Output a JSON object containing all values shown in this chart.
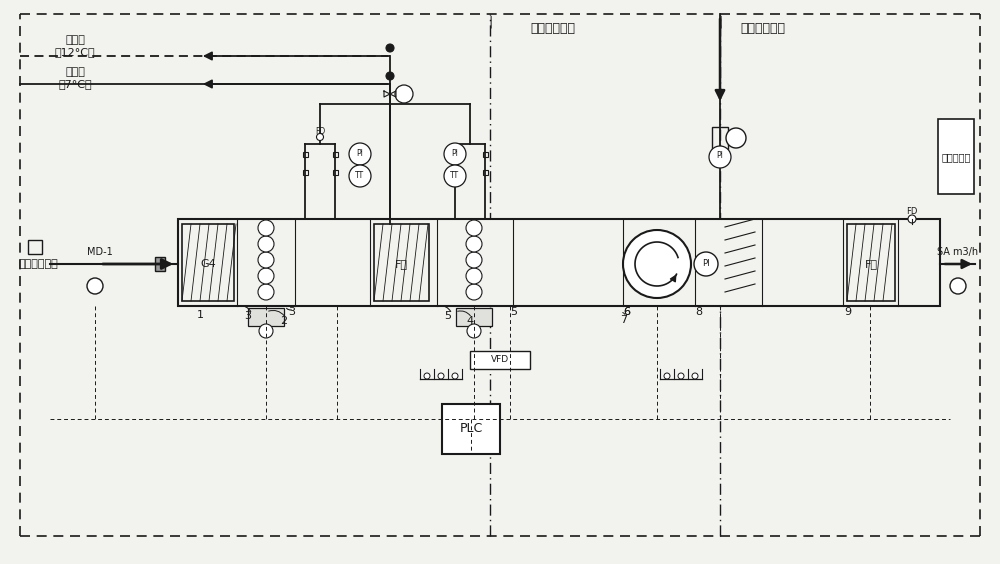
{
  "bg_color": "#f2f2ee",
  "line_color": "#1a1a1a",
  "labels": {
    "cooling_water_12": "冷却水\n（12°C）",
    "cooling_water_7": "冷却水\n（7°C）",
    "fresh_air": "接自新风百叶",
    "cooling_control": "制冷能力控制",
    "humidify_control": "加湿能力控制",
    "md1": "MD-1",
    "g4": "G4",
    "fb1": "F六",
    "fb2": "F六",
    "plc": "PLC",
    "ozone": "臭氧发生器",
    "sa": "SA m3/h",
    "fd": "FD",
    "pi": "PI",
    "tt": "TT",
    "vfd": "VFD"
  }
}
